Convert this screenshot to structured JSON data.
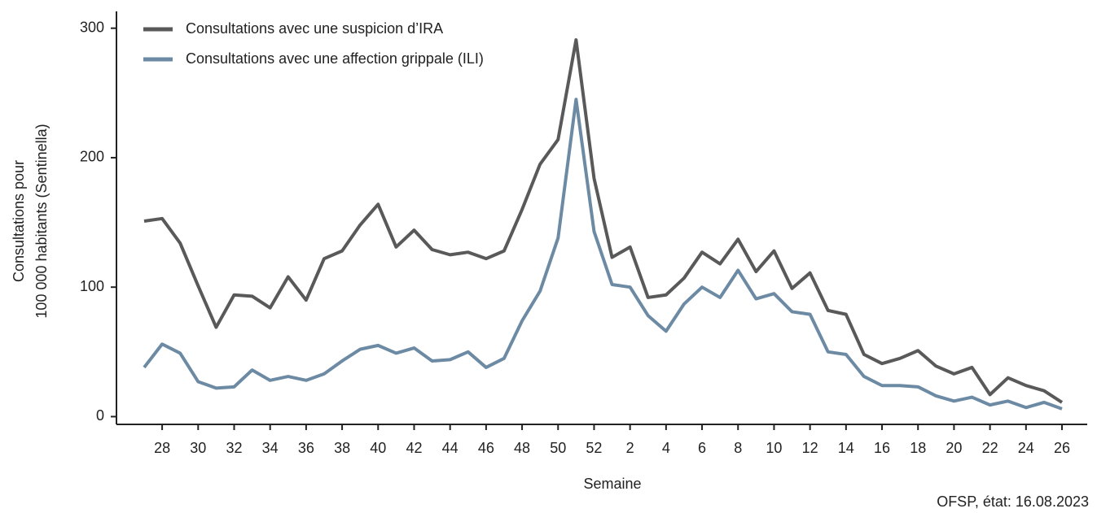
{
  "chart_data": {
    "type": "line",
    "ylabel": [
      "Consultations pour",
      "100 000 habitants (Sentinella)"
    ],
    "xlabel": "Semaine",
    "source": "OFSP, état: 16.08.2023",
    "categories": [
      null,
      28,
      null,
      30,
      null,
      32,
      null,
      34,
      null,
      36,
      null,
      38,
      null,
      40,
      null,
      42,
      null,
      44,
      null,
      46,
      null,
      48,
      null,
      50,
      null,
      52,
      null,
      2,
      null,
      4,
      null,
      6,
      null,
      8,
      null,
      10,
      null,
      12,
      null,
      14,
      null,
      16,
      null,
      18,
      null,
      20,
      null,
      22,
      null,
      24,
      null,
      26
    ],
    "series": [
      {
        "name": "Consultations avec une suspicion d’IRA",
        "color": "#595959",
        "values": [
          151,
          153,
          134,
          101,
          69,
          94,
          93,
          84,
          108,
          90,
          122,
          128,
          148,
          164,
          131,
          144,
          129,
          125,
          127,
          122,
          128,
          160,
          195,
          214,
          291,
          184,
          123,
          131,
          92,
          94,
          107,
          127,
          118,
          137,
          112,
          128,
          99,
          111,
          82,
          79,
          48,
          41,
          45,
          51,
          39,
          33,
          38,
          17,
          30,
          24,
          20,
          11
        ]
      },
      {
        "name": "Consultations avec une affection grippale (ILI)",
        "color": "#6c8aa3",
        "values": [
          38,
          56,
          49,
          27,
          22,
          23,
          36,
          28,
          31,
          28,
          33,
          43,
          52,
          55,
          49,
          53,
          43,
          44,
          50,
          38,
          45,
          74,
          97,
          138,
          245,
          143,
          102,
          100,
          78,
          66,
          87,
          100,
          92,
          113,
          91,
          95,
          81,
          79,
          50,
          48,
          31,
          24,
          24,
          23,
          16,
          12,
          15,
          9,
          12,
          7,
          11,
          6
        ]
      }
    ],
    "ylim": [
      -6,
      313
    ],
    "yticks": [
      0,
      100,
      200,
      300
    ],
    "legend": "top-left"
  }
}
